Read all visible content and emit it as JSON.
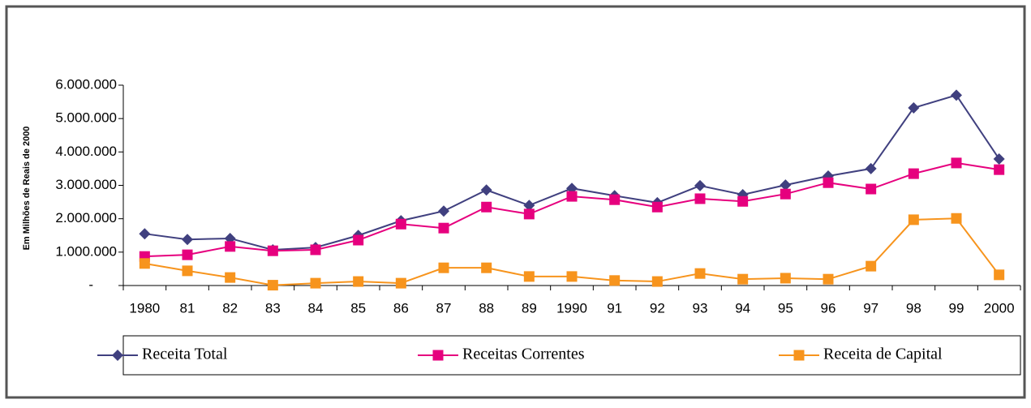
{
  "chart_data": {
    "type": "line",
    "y_label": "Em Milhões de Reais de 2000",
    "categories": [
      "1980",
      "81",
      "82",
      "83",
      "84",
      "85",
      "86",
      "87",
      "88",
      "89",
      "1990",
      "91",
      "92",
      "93",
      "94",
      "95",
      "96",
      "97",
      "98",
      "99",
      "2000"
    ],
    "ylim": [
      0,
      6000000
    ],
    "yticks": [
      {
        "value": 0,
        "label": "-"
      },
      {
        "value": 1000000,
        "label": "1.000.000"
      },
      {
        "value": 2000000,
        "label": "2.000.000"
      },
      {
        "value": 3000000,
        "label": "3.000.000"
      },
      {
        "value": 4000000,
        "label": "4.000.000"
      },
      {
        "value": 5000000,
        "label": "5.000.000"
      },
      {
        "value": 6000000,
        "label": "6.000.000"
      }
    ],
    "series": [
      {
        "name": "Receita Total",
        "color": "#40407f",
        "marker": "diamond",
        "values": [
          1550000,
          1380000,
          1410000,
          1070000,
          1140000,
          1500000,
          1940000,
          2230000,
          2860000,
          2400000,
          2910000,
          2690000,
          2480000,
          2990000,
          2720000,
          3010000,
          3280000,
          3500000,
          5320000,
          5700000,
          3790000
        ]
      },
      {
        "name": "Receitas Correntes",
        "color": "#e6007e",
        "marker": "square",
        "values": [
          870000,
          920000,
          1170000,
          1040000,
          1070000,
          1360000,
          1840000,
          1720000,
          2350000,
          2140000,
          2670000,
          2570000,
          2350000,
          2600000,
          2520000,
          2740000,
          3080000,
          2890000,
          3350000,
          3670000,
          3470000
        ]
      },
      {
        "name": "Receita de Capital",
        "color": "#f7941d",
        "marker": "square",
        "values": [
          660000,
          440000,
          240000,
          10000,
          70000,
          120000,
          70000,
          530000,
          530000,
          270000,
          270000,
          150000,
          120000,
          360000,
          190000,
          220000,
          190000,
          580000,
          1970000,
          2010000,
          320000
        ]
      }
    ]
  }
}
